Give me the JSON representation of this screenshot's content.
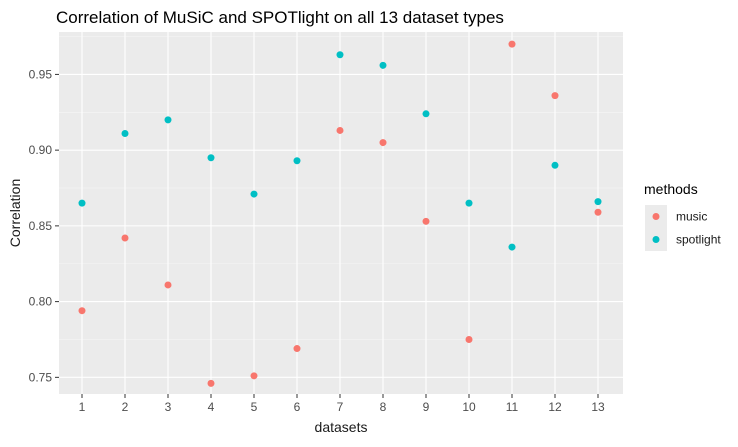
{
  "chart_data": {
    "type": "scatter",
    "title": "Correlation of MuSiC and SPOTlight on all 13 dataset types",
    "xlabel": "datasets",
    "ylabel": "Correlation",
    "categories": [
      "1",
      "2",
      "3",
      "4",
      "5",
      "6",
      "7",
      "8",
      "9",
      "10",
      "11",
      "12",
      "13"
    ],
    "yticks": [
      "0.75",
      "0.80",
      "0.85",
      "0.90",
      "0.95"
    ],
    "ylim": [
      0.739,
      0.978
    ],
    "grid": true,
    "legend": {
      "title": "methods",
      "position": "right"
    },
    "series": [
      {
        "name": "music",
        "color": "#F8766D",
        "values": [
          0.794,
          0.842,
          0.811,
          0.746,
          0.751,
          0.769,
          0.913,
          0.905,
          0.853,
          0.775,
          0.97,
          0.936,
          0.859
        ]
      },
      {
        "name": "spotlight",
        "color": "#00BFC4",
        "values": [
          0.865,
          0.911,
          0.92,
          0.895,
          0.871,
          0.893,
          0.963,
          0.956,
          0.924,
          0.865,
          0.836,
          0.89,
          0.866
        ]
      }
    ]
  }
}
